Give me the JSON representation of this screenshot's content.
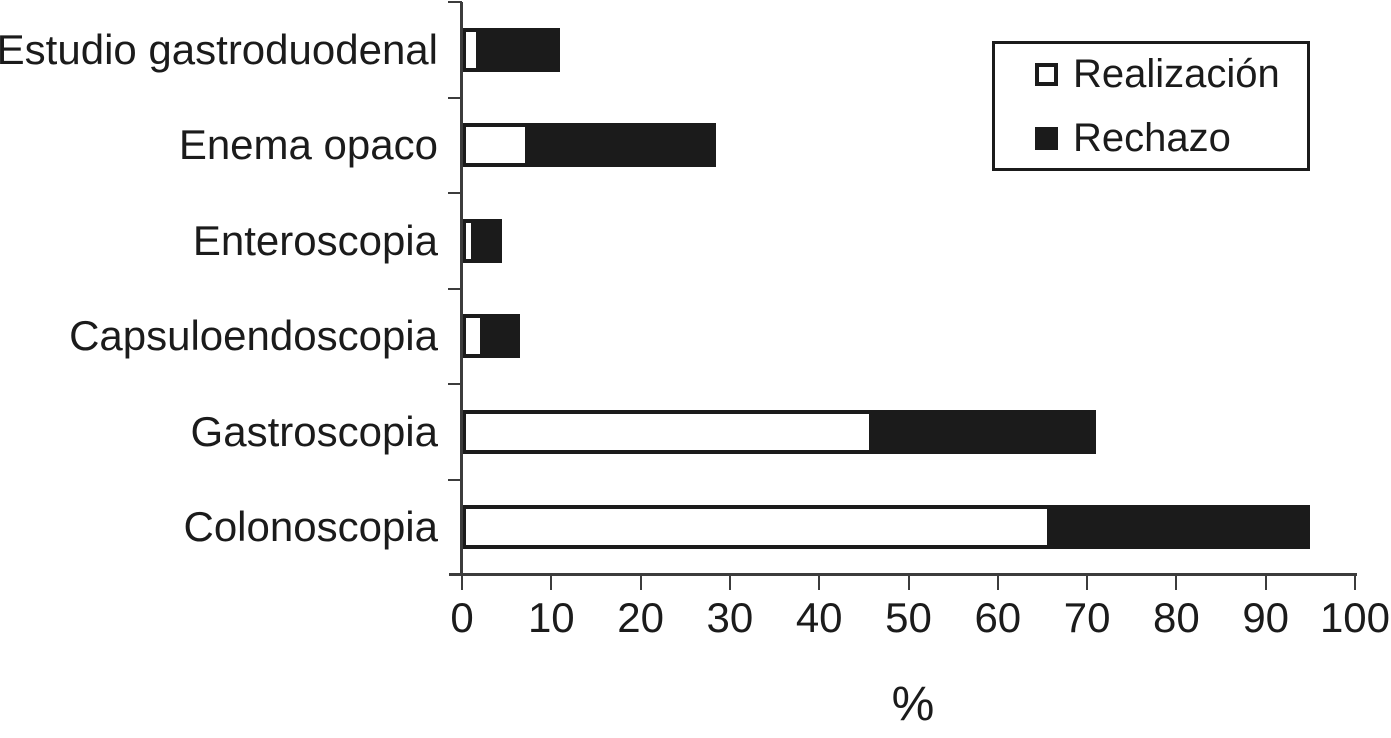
{
  "figure": {
    "background": "#ffffff",
    "ink_color": "#1b1b1b",
    "axis_color": "#3c3c3c"
  },
  "chart_data": {
    "type": "bar",
    "orientation": "horizontal",
    "stacked": true,
    "title": "",
    "xlabel": "%",
    "ylabel": "",
    "xlim": [
      0,
      100
    ],
    "xticks": [
      0,
      10,
      20,
      30,
      40,
      50,
      60,
      70,
      80,
      90,
      100
    ],
    "grid": false,
    "legend_position": "top-right",
    "categories": [
      "Estudio gastroduodenal",
      "Enema opaco",
      "Enteroscopia",
      "Capsuloendoscopia",
      "Gastroscopia",
      "Colonoscopia"
    ],
    "series": [
      {
        "name": "Realización",
        "color": "#ffffff",
        "border_color": "#1b1b1b",
        "values": [
          2,
          7.5,
          1.5,
          2.5,
          46,
          66
        ]
      },
      {
        "name": "Rechazo",
        "color": "#1b1b1b",
        "border_color": "#1b1b1b",
        "values": [
          9,
          21,
          3,
          4,
          25,
          29
        ]
      }
    ]
  },
  "legend": {
    "items": [
      {
        "label": "Realización",
        "swatch": "white-open-square"
      },
      {
        "label": "Rechazo",
        "swatch": "black-filled-square"
      }
    ]
  }
}
